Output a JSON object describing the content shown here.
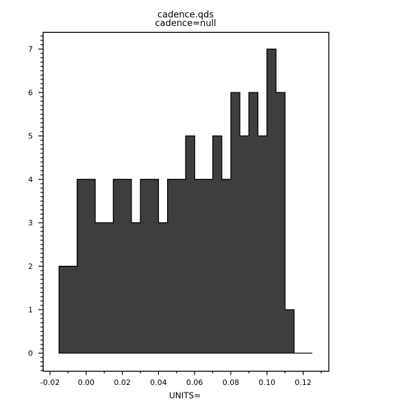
{
  "window": {
    "background": "#ffffff"
  },
  "header": {
    "title": "cadence.qds",
    "subtitle": "cadence=null"
  },
  "chart_data": {
    "type": "bar",
    "subtype": "histogram",
    "title": "cadence.qds",
    "subtitle": "cadence=null",
    "xlabel": "UNITS=",
    "ylabel": "",
    "bin_start": -0.015,
    "bin_width": 0.005,
    "counts": [
      2,
      2,
      4,
      4,
      3,
      3,
      4,
      4,
      3,
      4,
      4,
      3,
      4,
      4,
      5,
      4,
      4,
      5,
      4,
      6,
      5,
      6,
      5,
      7,
      6,
      1,
      0,
      0
    ],
    "total_samples": 106,
    "xlim": [
      -0.0238,
      0.1342
    ],
    "ylim": [
      -0.418,
      7.383
    ],
    "x_major_ticks": [
      -0.02,
      0.0,
      0.02,
      0.04,
      0.06,
      0.08,
      0.1,
      0.12
    ],
    "x_major_labels": [
      "-0.02",
      "0.00",
      "0.02",
      "0.04",
      "0.06",
      "0.08",
      "0.10",
      "0.12"
    ],
    "x_minor_ticks": [
      -0.01,
      0.01,
      0.03,
      0.05,
      0.07,
      0.09,
      0.11,
      0.13
    ],
    "y_major_ticks": [
      0,
      1,
      2,
      3,
      4,
      5,
      6,
      7
    ],
    "y_major_labels": [
      "0",
      "1",
      "2",
      "3",
      "4",
      "5",
      "6",
      "7"
    ],
    "y_minor_step": 0.1,
    "grid": false,
    "legend": null,
    "colors": {
      "bar_fill": "#3e3e3e",
      "bar_outline": "#000000",
      "axis": "#000000",
      "text": "#000000",
      "background": "#ffffff"
    }
  }
}
